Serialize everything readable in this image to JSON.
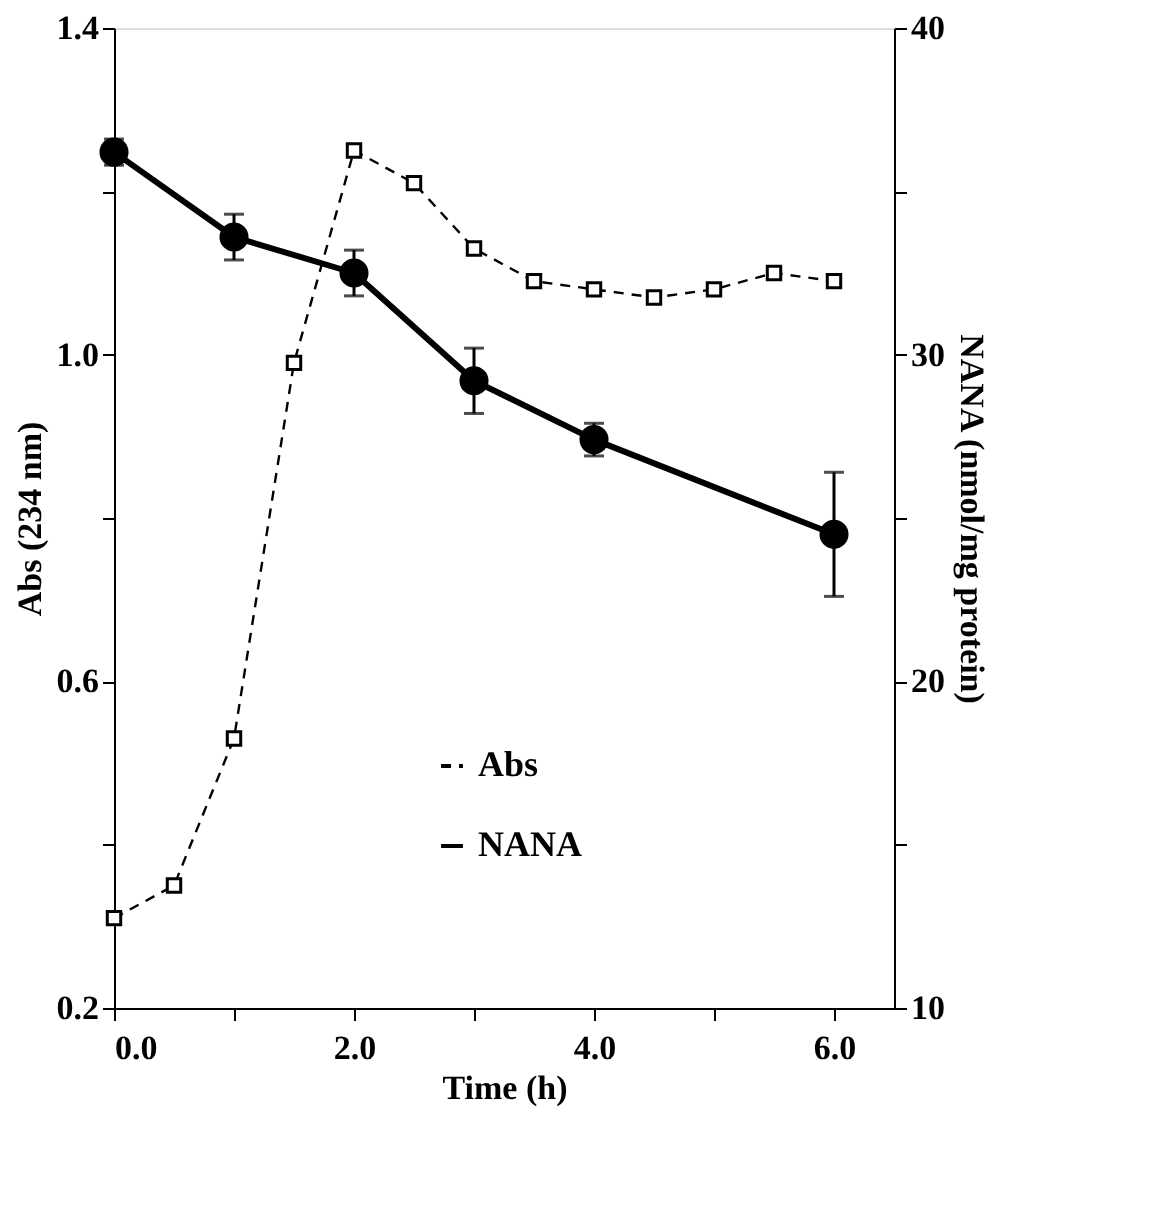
{
  "chart_data": {
    "type": "line",
    "xlabel": "Time (h)",
    "ylabel": "Abs (234 nm)",
    "y2label": "NANA (nmol/mg protein)",
    "xlim": [
      0,
      6.5
    ],
    "xticks": [
      {
        "value": 0,
        "label": "0.0"
      },
      {
        "value": 1,
        "label": null
      },
      {
        "value": 2,
        "label": "2.0"
      },
      {
        "value": 3,
        "label": null
      },
      {
        "value": 4,
        "label": "4.0"
      },
      {
        "value": 5,
        "label": null
      },
      {
        "value": 6,
        "label": "6.0"
      }
    ],
    "ylim": [
      0.2,
      1.4
    ],
    "yticks": [
      0.2,
      {
        "value": 0.4,
        "label": null
      },
      0.6,
      {
        "value": 0.8,
        "label": null
      },
      {
        "value": 1.0,
        "label": "1.0"
      },
      {
        "value": 1.2,
        "label": null
      },
      1.4
    ],
    "y2lim": [
      10,
      40
    ],
    "y2ticks": [
      10,
      {
        "value": 15,
        "label": null
      },
      20,
      {
        "value": 25,
        "label": null
      },
      30,
      {
        "value": 35,
        "label": null
      },
      40
    ],
    "grid": false,
    "legend": "bottom",
    "series": [
      {
        "name": "Abs",
        "color": "#000000",
        "line_style": "dashed",
        "marker": "square",
        "x": [
          0,
          0.5,
          1,
          1.5,
          2,
          2.5,
          3,
          3.5,
          4,
          4.5,
          5,
          5.5,
          6
        ],
        "values": [
          0.31,
          0.35,
          0.53,
          0.99,
          1.25,
          1.21,
          1.13,
          1.09,
          1.08,
          1.07,
          1.08,
          1.1,
          1.09
        ]
      },
      {
        "name": "NANA",
        "color": "#000000",
        "line_style": "solid",
        "marker": "circle",
        "axis": "y2",
        "x": [
          0,
          1,
          2,
          3,
          4,
          6
        ],
        "values": [
          36.2,
          33.6,
          32.5,
          29.2,
          27.4,
          24.5
        ],
        "errors": [
          0.4,
          0.7,
          0.7,
          1.0,
          0.5,
          1.9
        ]
      }
    ]
  }
}
